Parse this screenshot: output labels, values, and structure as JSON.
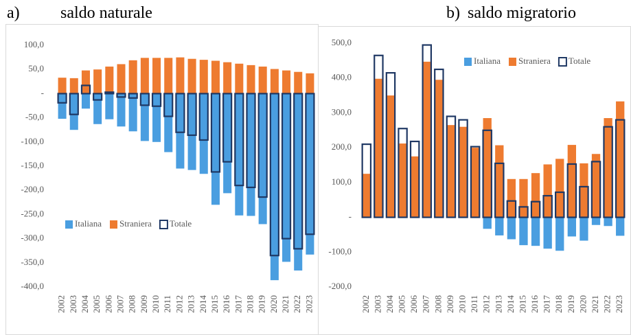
{
  "chart_data": [
    {
      "type": "bar",
      "label": "a)",
      "title": "saldo naturale",
      "categories": [
        "2002",
        "2003",
        "2004",
        "2005",
        "2006",
        "2007",
        "2008",
        "2009",
        "2010",
        "2011",
        "2012",
        "2013",
        "2014",
        "2015",
        "2016",
        "2017",
        "2018",
        "2019",
        "2020",
        "2021",
        "2022",
        "2023"
      ],
      "series": [
        {
          "name": "Italiana",
          "color": "#4a9ee0",
          "values": [
            -52,
            -75,
            -31,
            -63,
            -53,
            -68,
            -78,
            -98,
            -100,
            -121,
            -155,
            -158,
            -166,
            -230,
            -206,
            -252,
            -253,
            -270,
            -386,
            -348,
            -366,
            -333
          ]
        },
        {
          "name": "Straniera",
          "color": "#ee7b30",
          "values": [
            33,
            32,
            48,
            50,
            56,
            61,
            69,
            74,
            74,
            74,
            75,
            72,
            70,
            68,
            65,
            62,
            59,
            56,
            51,
            48,
            45,
            42
          ]
        },
        {
          "name": "Totale",
          "color": "#1f3864",
          "values": [
            -19,
            -43,
            17,
            -13,
            3,
            -7,
            -9,
            -24,
            -26,
            -47,
            -80,
            -86,
            -96,
            -162,
            -141,
            -190,
            -194,
            -214,
            -335,
            -300,
            -321,
            -291
          ]
        }
      ],
      "ylim": [
        -400,
        100
      ],
      "yticks": [
        {
          "value": 100,
          "label": "100,0"
        },
        {
          "value": 50,
          "label": "50,0"
        },
        {
          "value": 0,
          "label": "-"
        },
        {
          "value": -50,
          "label": "-50,0"
        },
        {
          "value": -100,
          "label": "-100,0"
        },
        {
          "value": -150,
          "label": "-150,0"
        },
        {
          "value": -200,
          "label": "-200,0"
        },
        {
          "value": -250,
          "label": "-250,0"
        },
        {
          "value": -300,
          "label": "-300,0"
        },
        {
          "value": -350,
          "label": "-350,0"
        },
        {
          "value": -400,
          "label": "-400,0"
        }
      ],
      "grid": false,
      "legend": "lower left"
    },
    {
      "type": "bar",
      "label": "b)",
      "title": "saldo migratorio",
      "categories": [
        "2002",
        "2003",
        "2004",
        "2005",
        "2006",
        "2007",
        "2008",
        "2009",
        "2010",
        "2011",
        "2012",
        "2013",
        "2014",
        "2015",
        "2016",
        "2017",
        "2018",
        "2019",
        "2020",
        "2021",
        "2022",
        "2023"
      ],
      "series": [
        {
          "name": "Italiana",
          "color": "#4a9ee0",
          "values": [
            0,
            0,
            0,
            0,
            0,
            0,
            0,
            0,
            0,
            0,
            -33,
            -52,
            -63,
            -80,
            -82,
            -90,
            -96,
            -55,
            -67,
            -22,
            -25,
            -53
          ]
        },
        {
          "name": "Straniera",
          "color": "#ee7b30",
          "values": [
            125,
            398,
            350,
            212,
            175,
            447,
            395,
            265,
            260,
            200,
            285,
            207,
            110,
            110,
            127,
            152,
            168,
            208,
            155,
            182,
            285,
            333
          ]
        },
        {
          "name": "Totale",
          "color": "#1f3864",
          "values": [
            210,
            465,
            415,
            255,
            218,
            495,
            425,
            290,
            280,
            203,
            250,
            155,
            47,
            30,
            45,
            62,
            72,
            153,
            88,
            160,
            260,
            280
          ]
        }
      ],
      "ylim": [
        -200,
        500
      ],
      "yticks": [
        {
          "value": 500,
          "label": "500,0"
        },
        {
          "value": 400,
          "label": "400,0"
        },
        {
          "value": 300,
          "label": "300,0"
        },
        {
          "value": 200,
          "label": "200,0"
        },
        {
          "value": 100,
          "label": "100,0"
        },
        {
          "value": 0,
          "label": "-"
        },
        {
          "value": -100,
          "label": "-100,0"
        },
        {
          "value": -200,
          "label": "-200,0"
        }
      ],
      "grid": false,
      "legend": "upper center"
    }
  ]
}
